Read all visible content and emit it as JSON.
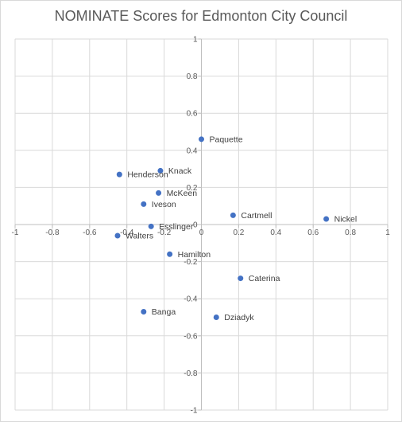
{
  "chart_data": {
    "type": "scatter",
    "title": "NOMINATE Scores for Edmonton City Council",
    "xlabel": "",
    "ylabel": "",
    "xlim": [
      -1,
      1
    ],
    "ylim": [
      -1,
      1
    ],
    "xticks": [
      -1,
      -0.8,
      -0.6,
      -0.4,
      -0.2,
      0,
      0.2,
      0.4,
      0.6,
      0.8,
      1
    ],
    "yticks": [
      -1,
      -0.8,
      -0.6,
      -0.4,
      -0.2,
      0,
      0.2,
      0.4,
      0.6,
      0.8,
      1
    ],
    "xtick_labels": [
      "-1",
      "-0.8",
      "-0.6",
      "-0.4",
      "-0.2",
      "0",
      "0.2",
      "0.4",
      "0.6",
      "0.8",
      "1"
    ],
    "ytick_labels": [
      "-1",
      "-0.8",
      "-0.6",
      "-0.4",
      "-0.2",
      "0",
      "0.2",
      "0.4",
      "0.6",
      "0.8",
      "1"
    ],
    "grid": true,
    "legend": "none",
    "marker_color": "#4472c4",
    "points": [
      {
        "label": "Paquette",
        "x": 0.0,
        "y": 0.46
      },
      {
        "label": "Knack",
        "x": -0.22,
        "y": 0.29
      },
      {
        "label": "Henderson",
        "x": -0.44,
        "y": 0.27
      },
      {
        "label": "McKeen",
        "x": -0.23,
        "y": 0.17
      },
      {
        "label": "Iveson",
        "x": -0.31,
        "y": 0.11
      },
      {
        "label": "Cartmell",
        "x": 0.17,
        "y": 0.05
      },
      {
        "label": "Nickel",
        "x": 0.67,
        "y": 0.03
      },
      {
        "label": "Esslinger",
        "x": -0.27,
        "y": -0.01
      },
      {
        "label": "Walters",
        "x": -0.45,
        "y": -0.06
      },
      {
        "label": "Hamilton",
        "x": -0.17,
        "y": -0.16
      },
      {
        "label": "Caterina",
        "x": 0.21,
        "y": -0.29
      },
      {
        "label": "Banga",
        "x": -0.31,
        "y": -0.47
      },
      {
        "label": "Dziadyk",
        "x": 0.08,
        "y": -0.5
      }
    ]
  }
}
